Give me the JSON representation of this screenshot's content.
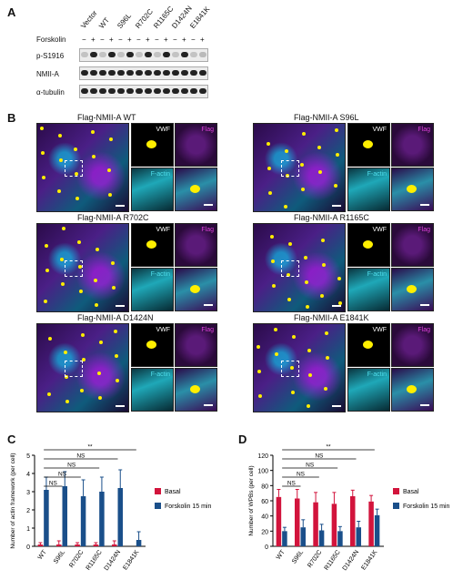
{
  "panelA": {
    "letter": "A",
    "lanes": [
      "Vector",
      "WT",
      "S96L",
      "R702C",
      "R1165C",
      "D1424N",
      "E1841K"
    ],
    "forskolin_label": "Forskolin",
    "forskolin_signs": [
      "−",
      "+",
      "−",
      "+",
      "−",
      "+",
      "−",
      "+",
      "−",
      "+",
      "−",
      "+",
      "−",
      "+"
    ],
    "rows": [
      "p-S1916",
      "NMII-A",
      "α-tubulin"
    ]
  },
  "panelB": {
    "letter": "B",
    "images": [
      {
        "title": "Flag-NMII-A WT",
        "vwf": "VWF",
        "flag": "Flag",
        "factin": "F-actin"
      },
      {
        "title": "Flag-NMII-A S96L",
        "vwf": "VWF",
        "flag": "Flag",
        "factin": "F-actin"
      },
      {
        "title": "Flag-NMII-A R702C",
        "vwf": "VWF",
        "flag": "Flag",
        "factin": "F-actin"
      },
      {
        "title": "Flag-NMII-A R1165C",
        "vwf": "VWF",
        "flag": "Flag",
        "factin": "F-actin"
      },
      {
        "title": "Flag-NMII-A D1424N",
        "vwf": "VWF",
        "flag": "Flag",
        "factin": "F-actin"
      },
      {
        "title": "Flag-NMII-A E1841K",
        "vwf": "VWF",
        "flag": "Flag",
        "factin": "F-actin"
      }
    ]
  },
  "chart_data": [
    {
      "panel": "C",
      "type": "bar",
      "ylabel": "Number of actin framework (per cell)",
      "ylim": [
        0,
        5
      ],
      "yticks": [
        0,
        1,
        2,
        3,
        4,
        5
      ],
      "categories": [
        "WT",
        "S96L",
        "R702C",
        "R1165C",
        "D1424N",
        "E1841K"
      ],
      "series": [
        {
          "name": "Basal",
          "color": "#d2143c",
          "values": [
            0.1,
            0.1,
            0.1,
            0.1,
            0.1,
            0.0
          ],
          "errors": [
            0.1,
            0.2,
            0.1,
            0.1,
            0.2,
            0.0
          ]
        },
        {
          "name": "Forskolin 15 min",
          "color": "#1a4f8a",
          "values": [
            3.1,
            3.3,
            2.75,
            3.0,
            3.2,
            0.35
          ],
          "errors": [
            0.7,
            0.8,
            0.9,
            0.8,
            1.0,
            0.45
          ]
        }
      ],
      "significance": [
        {
          "label": "NS",
          "from": 0,
          "to": 1
        },
        {
          "label": "NS",
          "from": 0,
          "to": 2
        },
        {
          "label": "NS",
          "from": 0,
          "to": 3
        },
        {
          "label": "NS",
          "from": 0,
          "to": 4
        },
        {
          "label": "**",
          "from": 0,
          "to": 5
        }
      ],
      "legend_position": "right"
    },
    {
      "panel": "D",
      "type": "bar",
      "ylabel": "Number of WPBs (per cell)",
      "ylim": [
        0,
        120
      ],
      "yticks": [
        0,
        20,
        40,
        60,
        80,
        100,
        120
      ],
      "categories": [
        "WT",
        "S96L",
        "R702C",
        "R1165C",
        "D1424N",
        "E1841K"
      ],
      "series": [
        {
          "name": "Basal",
          "color": "#d2143c",
          "values": [
            65,
            63,
            58,
            56,
            66,
            59
          ],
          "errors": [
            10,
            12,
            13,
            15,
            8,
            8
          ]
        },
        {
          "name": "Forskolin 15 min",
          "color": "#1a4f8a",
          "values": [
            20,
            25,
            21,
            20,
            25,
            41
          ],
          "errors": [
            5,
            10,
            8,
            6,
            8,
            8
          ]
        }
      ],
      "significance": [
        {
          "label": "NS",
          "from": 0,
          "to": 1
        },
        {
          "label": "NS",
          "from": 0,
          "to": 2
        },
        {
          "label": "NS",
          "from": 0,
          "to": 3
        },
        {
          "label": "NS",
          "from": 0,
          "to": 4
        },
        {
          "label": "**",
          "from": 0,
          "to": 5
        }
      ],
      "legend_position": "right"
    }
  ]
}
